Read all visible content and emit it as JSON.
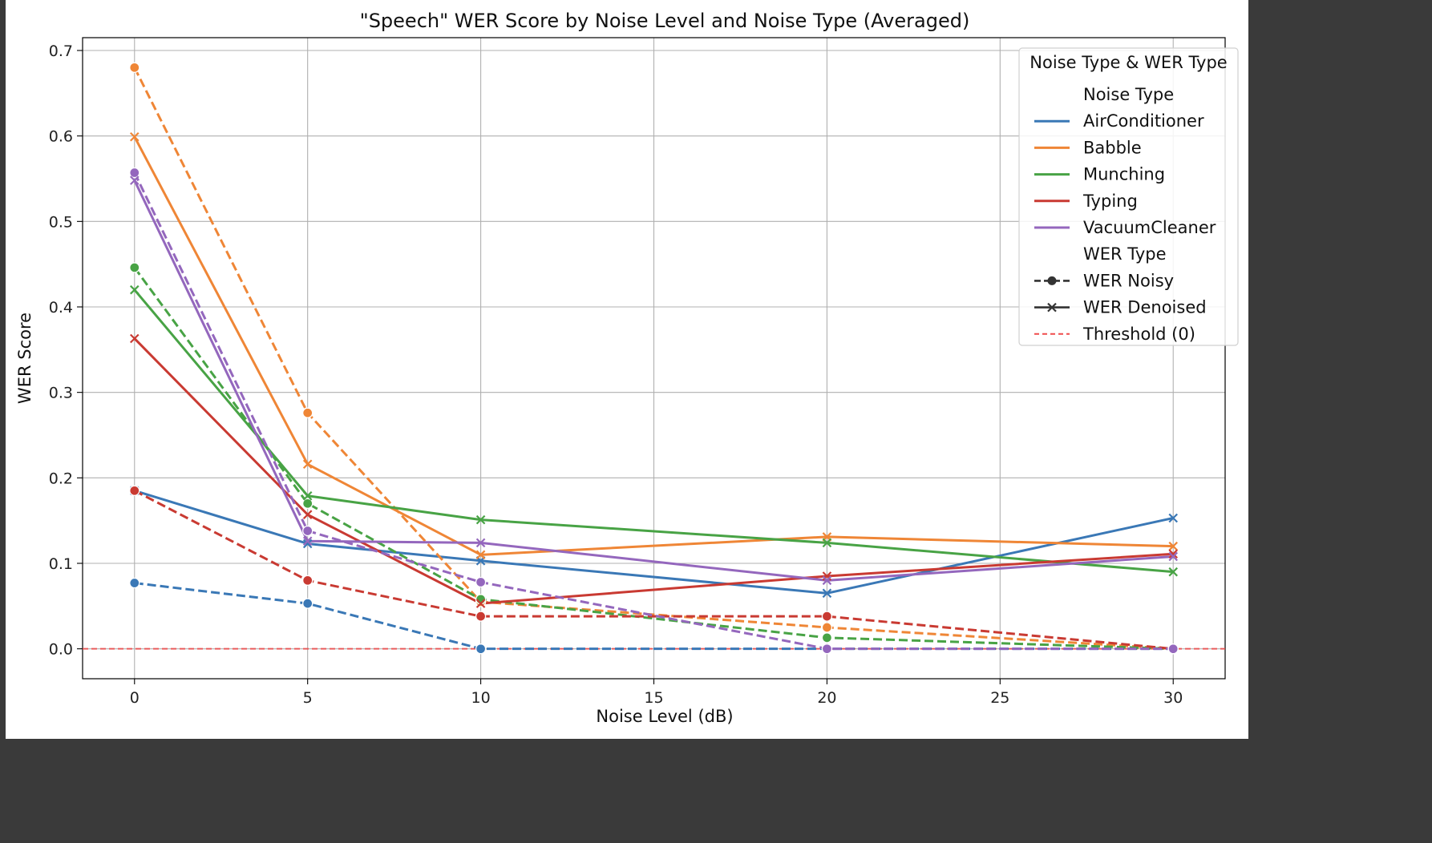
{
  "chart_data": {
    "type": "line",
    "title": "\"Speech\" WER Score by Noise Level and Noise Type (Averaged)",
    "xlabel": "Noise Level (dB)",
    "ylabel": "WER Score",
    "xlim": [
      -1.5,
      31.5
    ],
    "ylim": [
      -0.035,
      0.715
    ],
    "xticks": [
      0,
      5,
      10,
      15,
      20,
      25,
      30
    ],
    "yticks": [
      0.0,
      0.1,
      0.2,
      0.3,
      0.4,
      0.5,
      0.6,
      0.7
    ],
    "grid": true,
    "x": [
      0,
      5,
      10,
      20,
      30
    ],
    "threshold": {
      "value": 0,
      "label": "Threshold (0)",
      "color": "#ef4b4b"
    },
    "legend": {
      "position": "top-right",
      "title": "Noise Type & WER Type",
      "noise_type_header": "Noise Type",
      "wer_type_header": "WER Type",
      "wer_noisy_label": "WER Noisy",
      "wer_denoised_label": "WER Denoised"
    },
    "series": [
      {
        "noise_type": "AirConditioner",
        "color": "#3a78b6",
        "noisy": [
          0.077,
          0.053,
          0.0,
          0.0,
          0.0
        ],
        "denoised": [
          0.185,
          0.123,
          0.103,
          0.065,
          0.153
        ]
      },
      {
        "noise_type": "Babble",
        "color": "#ef8636",
        "noisy": [
          0.68,
          0.276,
          0.055,
          0.025,
          0.0
        ],
        "denoised": [
          0.599,
          0.216,
          0.11,
          0.131,
          0.12
        ]
      },
      {
        "noise_type": "Munching",
        "color": "#48a345",
        "noisy": [
          0.446,
          0.17,
          0.058,
          0.013,
          0.0
        ],
        "denoised": [
          0.42,
          0.179,
          0.151,
          0.124,
          0.09
        ]
      },
      {
        "noise_type": "Typing",
        "color": "#c93a32",
        "noisy": [
          0.185,
          0.08,
          0.038,
          0.038,
          0.0
        ],
        "denoised": [
          0.363,
          0.157,
          0.053,
          0.085,
          0.111
        ]
      },
      {
        "noise_type": "VacuumCleaner",
        "color": "#9467bd",
        "noisy": [
          0.557,
          0.138,
          0.078,
          0.0,
          0.0
        ],
        "denoised": [
          0.548,
          0.126,
          0.124,
          0.08,
          0.108
        ]
      }
    ]
  }
}
